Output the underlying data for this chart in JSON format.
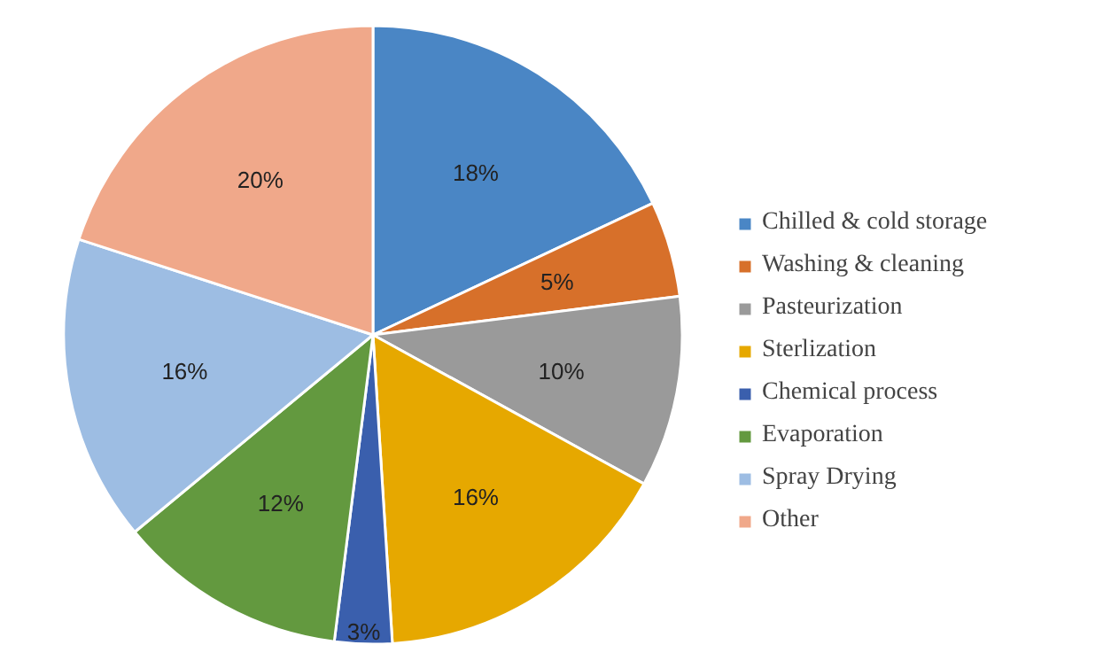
{
  "chart_data": {
    "type": "pie",
    "categories": [
      "Chilled & cold storage",
      "Washing & cleaning",
      "Pasteurization",
      "Sterlization",
      "Chemical process",
      "Evaporation",
      "Spray Drying",
      "Other"
    ],
    "values": [
      18,
      5,
      10,
      16,
      3,
      12,
      16,
      20
    ],
    "value_labels": [
      "18%",
      "5%",
      "10%",
      "16%",
      "3%",
      "12%",
      "16%",
      "20%"
    ],
    "colors": [
      "#4a86c5",
      "#d7702a",
      "#9a9a9a",
      "#e6a800",
      "#3a5fad",
      "#63993f",
      "#9dbde3",
      "#f0a88a"
    ],
    "legend": "right"
  }
}
